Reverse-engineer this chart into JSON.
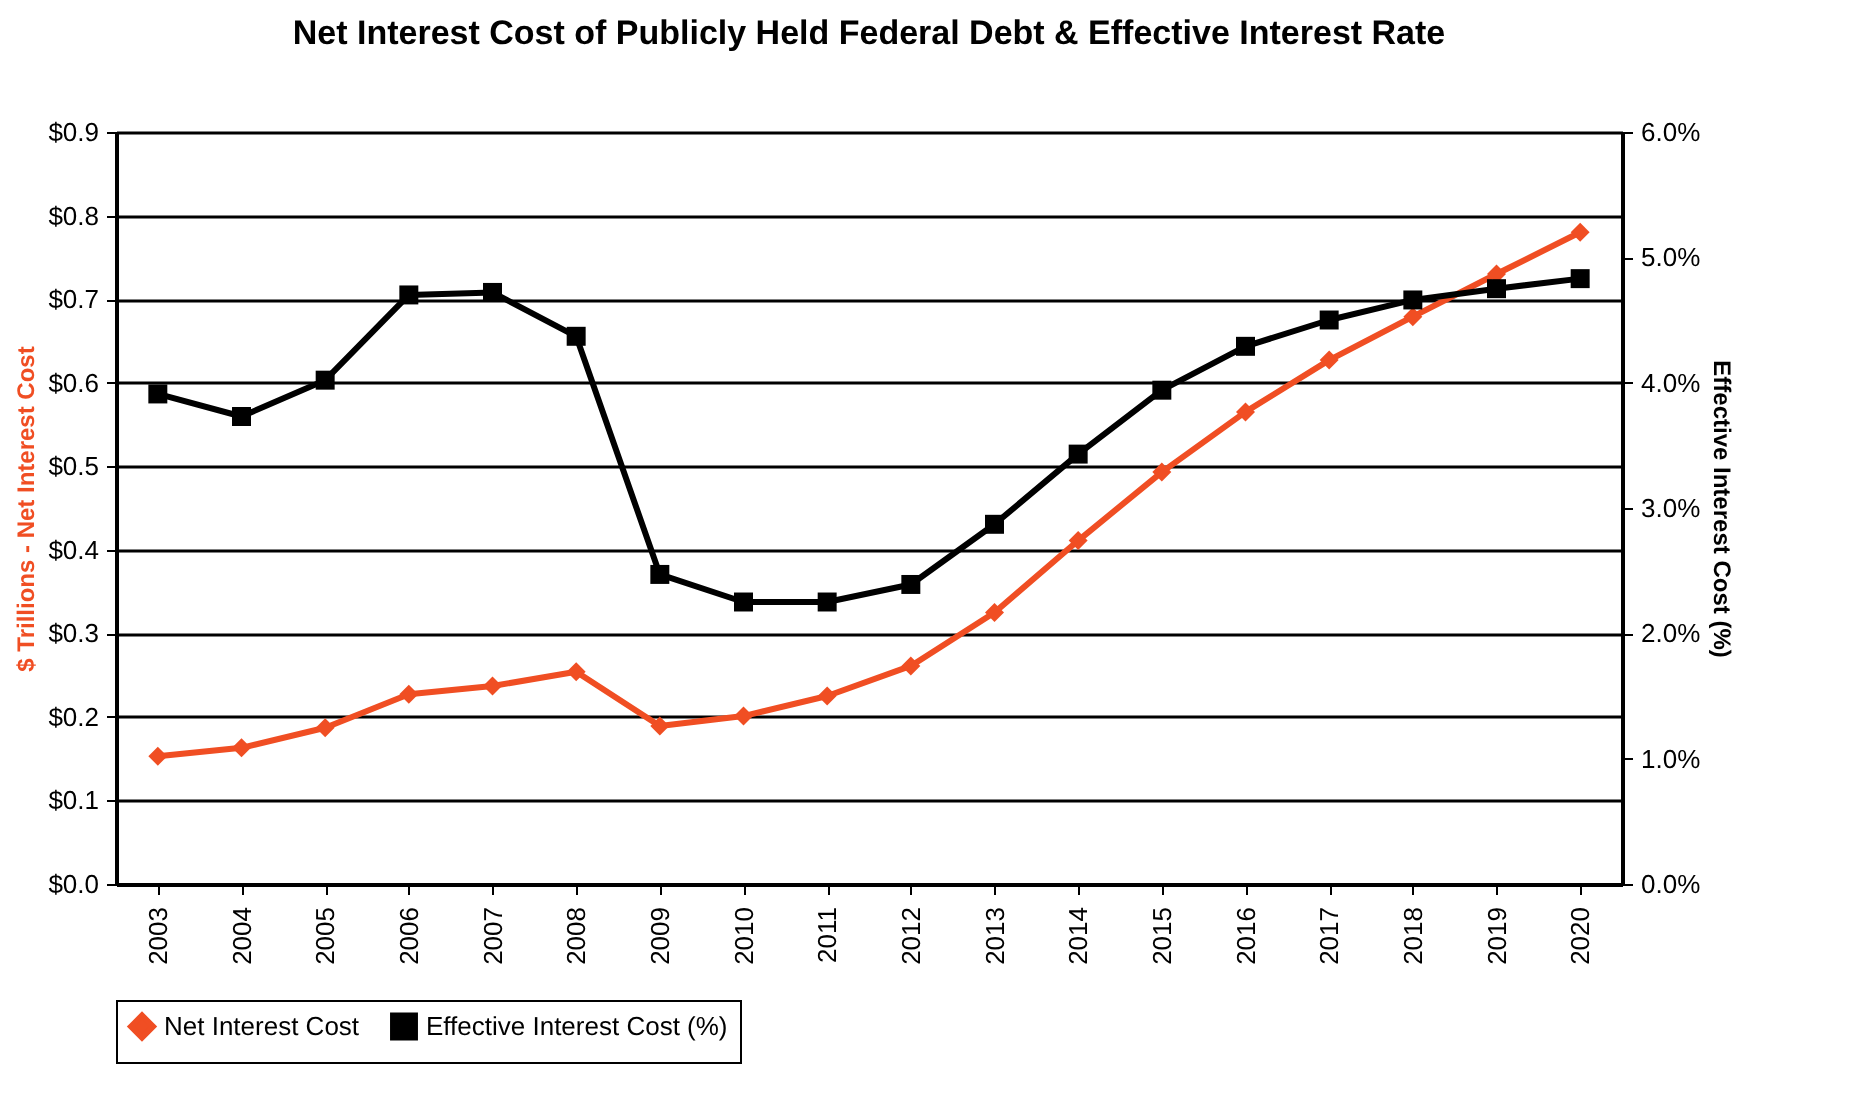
{
  "chart_data": {
    "type": "line",
    "title": "Net Interest Cost of Publicly Held Federal Debt & Effective Interest Rate",
    "ylabel": "$ Trillions - Net Interest Cost",
    "y2label": "Effective Interest Cost (%)",
    "categories": [
      "2003",
      "2004",
      "2005",
      "2006",
      "2007",
      "2008",
      "2009",
      "2010",
      "2011",
      "2012",
      "2013",
      "2014",
      "2015",
      "2016",
      "2017",
      "2018",
      "2019",
      "2020"
    ],
    "series": [
      {
        "name": "Net Interest Cost",
        "color": "#f04e23",
        "marker": "diamond",
        "values": [
          0.153,
          0.163,
          0.187,
          0.227,
          0.237,
          0.254,
          0.189,
          0.201,
          0.225,
          0.261,
          0.325,
          0.411,
          0.493,
          0.565,
          0.627,
          0.679,
          0.73,
          0.78
        ]
      },
      {
        "name": "Effective Interest Cost (%)",
        "color": "#000000",
        "marker": "square",
        "axis": "y2",
        "values": [
          3.91,
          3.73,
          4.02,
          4.7,
          4.72,
          4.37,
          2.47,
          2.25,
          2.25,
          2.39,
          2.87,
          3.43,
          3.94,
          4.29,
          4.5,
          4.66,
          4.75,
          4.83
        ]
      }
    ],
    "ylim": [
      0,
      0.9
    ],
    "yticks": [
      {
        "value": 0,
        "label": "$0.0"
      },
      {
        "value": 0.1,
        "label": "$0.1"
      },
      {
        "value": 0.2,
        "label": "$0.2"
      },
      {
        "value": 0.3,
        "label": "$0.3"
      },
      {
        "value": 0.4,
        "label": "$0.4"
      },
      {
        "value": 0.5,
        "label": "$0.5"
      },
      {
        "value": 0.6,
        "label": "$0.6"
      },
      {
        "value": 0.7,
        "label": "$0.7"
      },
      {
        "value": 0.8,
        "label": "$0.8"
      },
      {
        "value": 0.9,
        "label": "$0.9"
      }
    ],
    "y2lim": [
      0,
      6
    ],
    "y2ticks": [
      {
        "value": 0,
        "label": "0.0%"
      },
      {
        "value": 1,
        "label": "1.0%"
      },
      {
        "value": 2,
        "label": "2.0%"
      },
      {
        "value": 3,
        "label": "3.0%"
      },
      {
        "value": 4,
        "label": "4.0%"
      },
      {
        "value": 5,
        "label": "5.0%"
      },
      {
        "value": 6,
        "label": "6.0%"
      }
    ],
    "grid": "y",
    "legend": "bottom"
  }
}
